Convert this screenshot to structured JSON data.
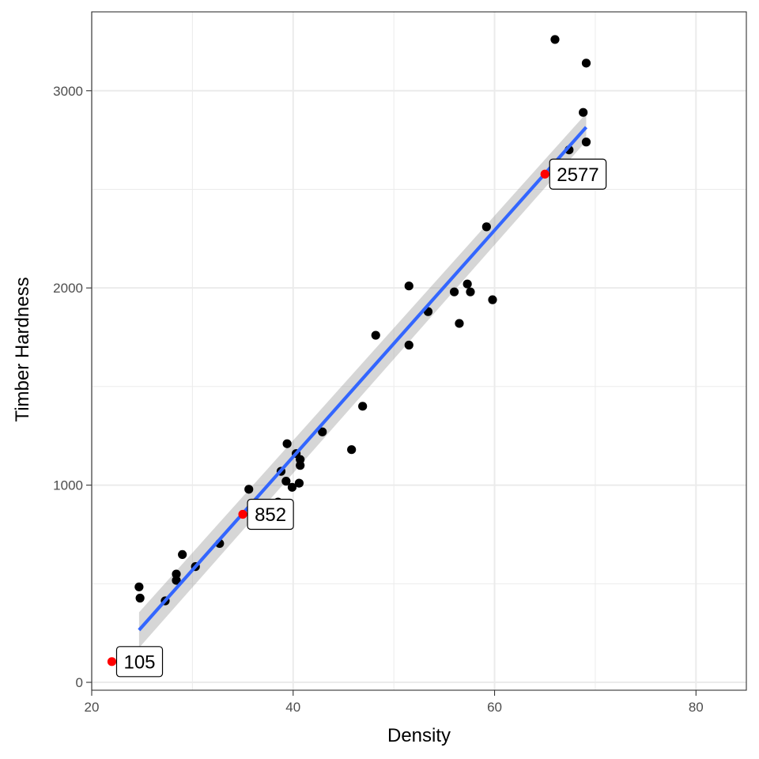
{
  "chart_data": {
    "type": "scatter",
    "xlabel": "Density",
    "ylabel": "Timber Hardness",
    "xlim": [
      20,
      85
    ],
    "ylim": [
      -40,
      3400
    ],
    "x_ticks": [
      20,
      40,
      60,
      80
    ],
    "x_tick_labels": [
      "20",
      "40",
      "60",
      "80"
    ],
    "y_ticks": [
      0,
      1000,
      2000,
      3000
    ],
    "y_tick_labels": [
      "0",
      "1000",
      "2000",
      "3000"
    ],
    "x_minor": [
      30,
      50,
      70
    ],
    "y_minor": [
      500,
      1500,
      2500
    ],
    "grid": true,
    "points": [
      {
        "x": 24.7,
        "y": 484
      },
      {
        "x": 24.8,
        "y": 427
      },
      {
        "x": 27.3,
        "y": 413
      },
      {
        "x": 28.4,
        "y": 517
      },
      {
        "x": 28.4,
        "y": 549
      },
      {
        "x": 29.0,
        "y": 648
      },
      {
        "x": 30.3,
        "y": 587
      },
      {
        "x": 32.7,
        "y": 704
      },
      {
        "x": 35.6,
        "y": 979
      },
      {
        "x": 38.5,
        "y": 914
      },
      {
        "x": 38.8,
        "y": 1070
      },
      {
        "x": 39.3,
        "y": 1020
      },
      {
        "x": 39.4,
        "y": 1210
      },
      {
        "x": 39.9,
        "y": 989
      },
      {
        "x": 40.3,
        "y": 1160
      },
      {
        "x": 40.6,
        "y": 1010
      },
      {
        "x": 40.7,
        "y": 1100
      },
      {
        "x": 40.7,
        "y": 1130
      },
      {
        "x": 42.9,
        "y": 1270
      },
      {
        "x": 45.8,
        "y": 1180
      },
      {
        "x": 46.9,
        "y": 1400
      },
      {
        "x": 48.2,
        "y": 1760
      },
      {
        "x": 51.5,
        "y": 1710
      },
      {
        "x": 51.5,
        "y": 2010
      },
      {
        "x": 53.4,
        "y": 1880
      },
      {
        "x": 56.0,
        "y": 1980
      },
      {
        "x": 56.5,
        "y": 1820
      },
      {
        "x": 57.3,
        "y": 2020
      },
      {
        "x": 57.6,
        "y": 1980
      },
      {
        "x": 59.2,
        "y": 2310
      },
      {
        "x": 59.8,
        "y": 1940
      },
      {
        "x": 66.0,
        "y": 3260
      },
      {
        "x": 67.4,
        "y": 2700
      },
      {
        "x": 68.8,
        "y": 2890
      },
      {
        "x": 69.1,
        "y": 2740
      },
      {
        "x": 69.1,
        "y": 3140
      }
    ],
    "highlighted_points": [
      {
        "x": 22.0,
        "y": 105,
        "label": "105"
      },
      {
        "x": 35.0,
        "y": 852,
        "label": "852"
      },
      {
        "x": 65.0,
        "y": 2577,
        "label": "2577"
      }
    ],
    "fit_line": {
      "method": "linear",
      "x": [
        24.7,
        69.1
      ],
      "y": [
        265,
        2815
      ],
      "ci_lower": [
        175,
        2745
      ],
      "ci_upper": [
        355,
        2885
      ],
      "color": "#3366FF",
      "ribbon_color": "#999999"
    },
    "point_color": "#000000",
    "highlight_color": "#FF0000"
  }
}
